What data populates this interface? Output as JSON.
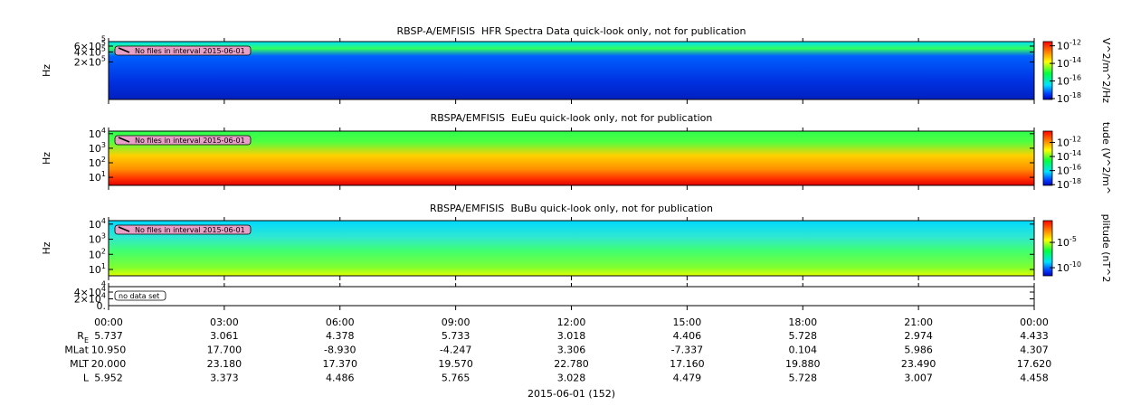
{
  "chart_data": [
    {
      "type": "spectrogram",
      "title": "RBSP-A/EMFISIS  HFR Spectra Data quick-look only, not for publication",
      "ylabel": "Hz",
      "annotation": "No files in interval 2015-06-01",
      "ylog": true,
      "ylim": [
        15000,
        820000
      ],
      "yticks": [
        {
          "value": 200000,
          "label": "2×10^5"
        },
        {
          "value": 400000,
          "label": "4×10^5"
        },
        {
          "value": 600000,
          "label": "6×10^5"
        }
      ],
      "clipped_tick_label": "5",
      "colorbar": {
        "label": "V^2/m^2/Hz",
        "log": true,
        "clim": [
          8e-19,
          3e-12
        ],
        "ticks": [
          {
            "value": 1e-12,
            "label": "10^-12"
          },
          {
            "value": 1e-14,
            "label": "10^-14"
          },
          {
            "value": 1e-16,
            "label": "10^-16"
          },
          {
            "value": 1e-18,
            "label": "10^-18"
          }
        ]
      }
    },
    {
      "type": "spectrogram",
      "title": "RBSPA/EMFISIS  EuEu quick-look only, not for publication",
      "ylabel": "Hz",
      "annotation": "No files in interval 2015-06-01",
      "ylog": true,
      "ylim": [
        2.8,
        15000
      ],
      "yticks": [
        {
          "value": 10,
          "label": "10^1"
        },
        {
          "value": 100,
          "label": "10^2"
        },
        {
          "value": 1000,
          "label": "10^3"
        },
        {
          "value": 10000,
          "label": "10^4"
        }
      ],
      "colorbar": {
        "label": "tude (V^2/m^",
        "log": true,
        "clim": [
          8e-19,
          4e-11
        ],
        "ticks": [
          {
            "value": 1e-12,
            "label": "10^-12"
          },
          {
            "value": 1e-14,
            "label": "10^-14"
          },
          {
            "value": 1e-16,
            "label": "10^-16"
          },
          {
            "value": 1e-18,
            "label": "10^-18"
          }
        ]
      }
    },
    {
      "type": "spectrogram",
      "title": "RBSPA/EMFISIS  BuBu quick-look only, not for publication",
      "ylabel": "Hz",
      "annotation": "No files in interval 2015-06-01",
      "ylog": true,
      "ylim": [
        3.8,
        17000
      ],
      "yticks": [
        {
          "value": 10,
          "label": "10^1"
        },
        {
          "value": 100,
          "label": "10^2"
        },
        {
          "value": 1000,
          "label": "10^3"
        },
        {
          "value": 10000,
          "label": "10^4"
        }
      ],
      "colorbar": {
        "label": "plitude (nT^2",
        "log": true,
        "clim": [
          2.5e-12,
          0.2
        ],
        "ticks": [
          {
            "value": 1e-05,
            "label": "10^-5"
          },
          {
            "value": 1e-10,
            "label": "10^-10"
          }
        ]
      }
    },
    {
      "type": "empty",
      "annotation": "no data set",
      "ylog": false,
      "ylim": [
        0,
        56000
      ],
      "yticks": [
        {
          "value": 0,
          "label": "0."
        },
        {
          "value": 20000,
          "label": "2×10^4"
        },
        {
          "value": 40000,
          "label": "4×10^4"
        }
      ],
      "clipped_tick_label": "4"
    }
  ],
  "time_axis": {
    "xlim": [
      0,
      24
    ],
    "xticks": [
      {
        "value": 0,
        "label": "00:00"
      },
      {
        "value": 3,
        "label": "03:00"
      },
      {
        "value": 6,
        "label": "06:00"
      },
      {
        "value": 9,
        "label": "09:00"
      },
      {
        "value": 12,
        "label": "12:00"
      },
      {
        "value": 15,
        "label": "15:00"
      },
      {
        "value": 18,
        "label": "18:00"
      },
      {
        "value": 21,
        "label": "21:00"
      },
      {
        "value": 24,
        "label": "00:00"
      }
    ],
    "xlabel": "2015-06-01 (152)"
  },
  "ephemeris": [
    {
      "label": "R_E",
      "values": [
        "5.737",
        "3.061",
        "4.378",
        "5.733",
        "3.018",
        "4.406",
        "5.728",
        "2.974",
        "4.433"
      ]
    },
    {
      "label": "MLat",
      "values": [
        "10.950",
        "17.700",
        "-8.930",
        "-4.247",
        "3.306",
        "-7.337",
        "0.104",
        "5.986",
        "4.307"
      ]
    },
    {
      "label": "MLT",
      "values": [
        "20.000",
        "23.180",
        "17.370",
        "19.570",
        "22.780",
        "17.160",
        "19.880",
        "23.490",
        "17.620"
      ]
    },
    {
      "label": "L",
      "values": [
        "5.952",
        "3.373",
        "4.486",
        "5.765",
        "3.028",
        "4.479",
        "5.728",
        "3.007",
        "4.458"
      ]
    }
  ]
}
